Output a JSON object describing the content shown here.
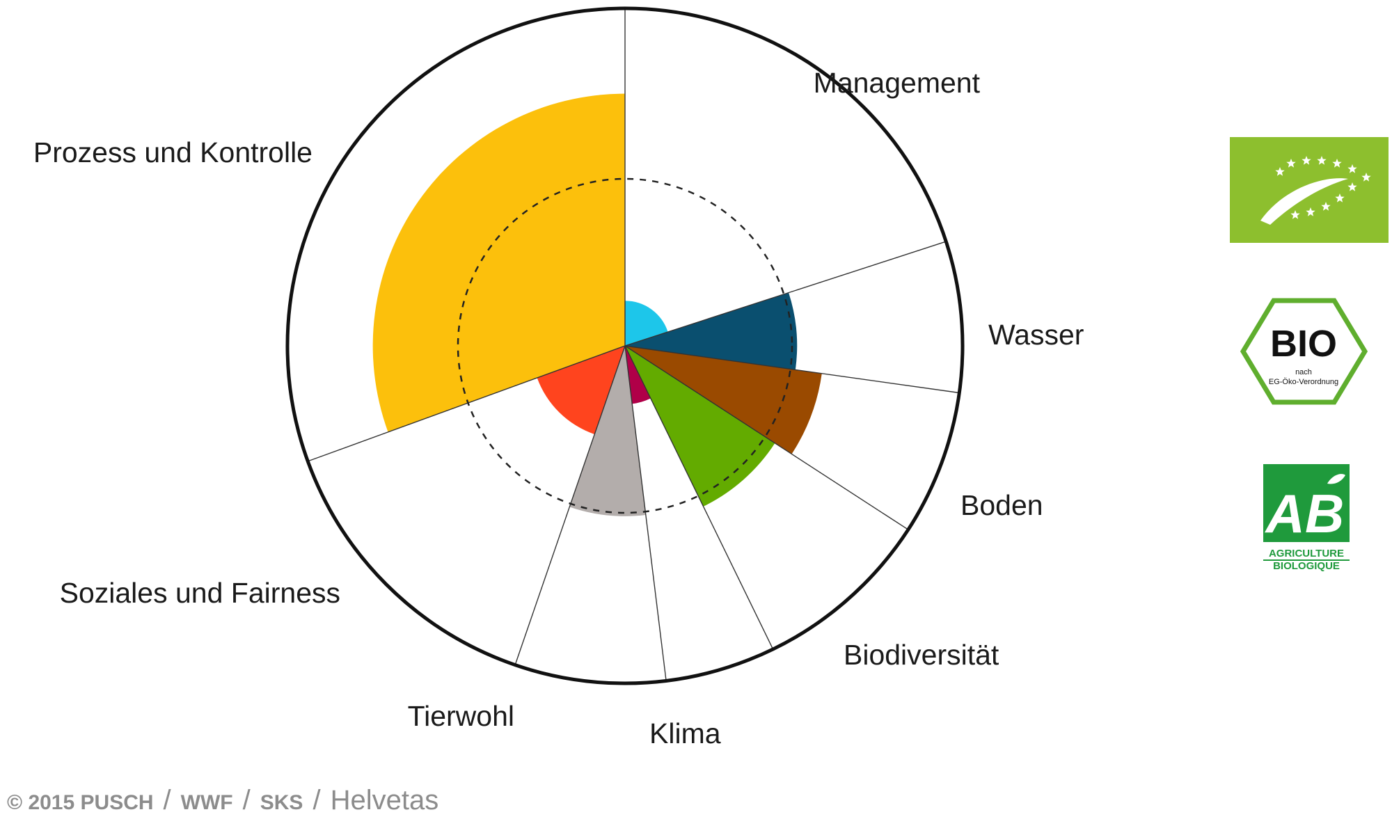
{
  "chart_data": {
    "type": "polar-area",
    "title": "",
    "unit_radius_reference": "dashed circle",
    "categories": [
      {
        "name": "Management",
        "start_deg": 0,
        "end_deg": 72,
        "value": 0.27,
        "color": "#1dc6ea"
      },
      {
        "name": "Wasser",
        "start_deg": 72,
        "end_deg": 98,
        "value": 1.03,
        "color": "#0a4f6f"
      },
      {
        "name": "Boden",
        "start_deg": 98,
        "end_deg": 123,
        "value": 1.19,
        "color": "#9a4a00"
      },
      {
        "name": "Biodiversität",
        "start_deg": 123,
        "end_deg": 154,
        "value": 1.07,
        "color": "#63ab00"
      },
      {
        "name": "Klima",
        "start_deg": 154,
        "end_deg": 173,
        "value": 0.35,
        "color": "#b00048"
      },
      {
        "name": "Tierwohl",
        "start_deg": 173,
        "end_deg": 199,
        "value": 1.02,
        "color": "#b3adab"
      },
      {
        "name": "Soziales und Fairness",
        "start_deg": 199,
        "end_deg": 250,
        "value": 0.56,
        "color": "#ff441e"
      },
      {
        "name": "Prozess und Kontrolle",
        "start_deg": 250,
        "end_deg": 360,
        "value": 1.51,
        "color": "#fcc00c"
      }
    ]
  },
  "footer": {
    "copyright": "© 2015 PUSCH",
    "sep": "/",
    "org2": "WWF",
    "org3": "SKS",
    "org4": "Helvetas"
  },
  "logos": [
    {
      "name": "eu-organic-logo",
      "color": "#8dbf2e"
    },
    {
      "name": "bio-siegel-logo",
      "text": "BIO",
      "subtext1": "nach",
      "subtext2": "EG-Öko-Verordnung",
      "color": "#5fae2e"
    },
    {
      "name": "ab-agriculture-biologique-logo",
      "text": "AB",
      "subtext1": "AGRICULTURE",
      "subtext2": "BIOLOGIQUE",
      "color": "#1f9a3c"
    }
  ]
}
